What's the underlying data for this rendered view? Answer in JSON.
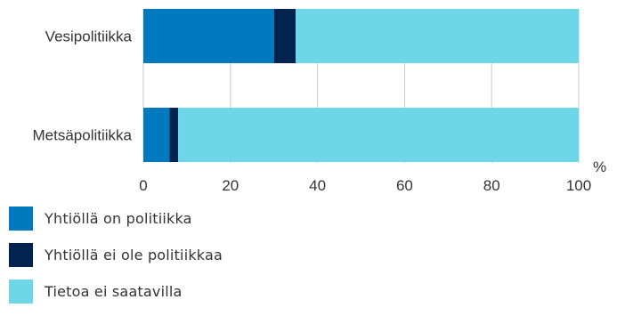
{
  "chart_data": {
    "type": "bar",
    "orientation": "horizontal",
    "stacked": true,
    "categories": [
      "Vesipolitiikka",
      "Metsäpolitiikka"
    ],
    "series": [
      {
        "name": "Yhtiöllä on politiikka",
        "color": "#0079BF",
        "values": [
          30,
          6
        ]
      },
      {
        "name": "Yhtiöllä ei ole politiikkaa",
        "color": "#00234F",
        "values": [
          5,
          2
        ]
      },
      {
        "name": "Tietoa ei saatavilla",
        "color": "#6DD7E8",
        "values": [
          65,
          92
        ]
      }
    ],
    "xticks": [
      "0",
      "20",
      "40",
      "60",
      "80",
      "100"
    ],
    "xlim": [
      0,
      100
    ],
    "unit": "%",
    "grid": true,
    "legend_placement": "bottom-left"
  }
}
